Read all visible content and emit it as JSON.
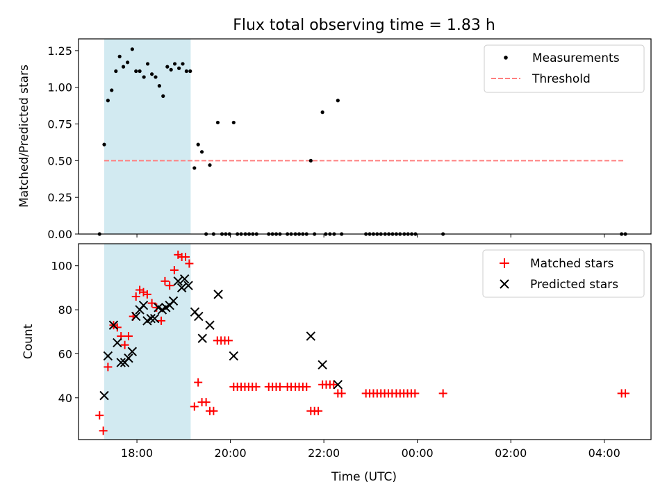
{
  "title": "Flux total observing time = 1.83 h",
  "colors": {
    "shade": "#add8e6",
    "threshold": "#ff7f7f",
    "matched": "#ff0000",
    "predicted": "#000000",
    "measurement": "#000000"
  },
  "chart_data": [
    {
      "type": "scatter",
      "ylabel": "Matched/Predicted stars",
      "xlim": [
        16.75,
        29.0
      ],
      "ylim": [
        0,
        1.33
      ],
      "yticks": [
        0.0,
        0.25,
        0.5,
        0.75,
        1.0,
        1.25
      ],
      "ytick_labels": [
        "0.00",
        "0.25",
        "0.50",
        "0.75",
        "1.00",
        "1.25"
      ],
      "xticks": [
        18,
        20,
        22,
        24,
        26,
        28
      ],
      "shaded_span": [
        17.3,
        19.15
      ],
      "legend": {
        "location": "top-right",
        "entries": [
          "Measurements",
          "Threshold"
        ]
      },
      "threshold": {
        "name": "Threshold",
        "y": 0.5,
        "x_range": [
          17.3,
          28.45
        ]
      },
      "series": [
        {
          "name": "Measurements",
          "marker": "dot",
          "points": [
            [
              17.2,
              0.0
            ],
            [
              17.3,
              0.61
            ],
            [
              17.38,
              0.91
            ],
            [
              17.46,
              0.98
            ],
            [
              17.55,
              1.11
            ],
            [
              17.63,
              1.21
            ],
            [
              17.71,
              1.14
            ],
            [
              17.8,
              1.17
            ],
            [
              17.9,
              1.26
            ],
            [
              17.98,
              1.11
            ],
            [
              18.06,
              1.11
            ],
            [
              18.15,
              1.07
            ],
            [
              18.23,
              1.16
            ],
            [
              18.32,
              1.09
            ],
            [
              18.4,
              1.07
            ],
            [
              18.48,
              1.01
            ],
            [
              18.56,
              0.94
            ],
            [
              18.65,
              1.14
            ],
            [
              18.73,
              1.12
            ],
            [
              18.81,
              1.16
            ],
            [
              18.9,
              1.13
            ],
            [
              18.98,
              1.16
            ],
            [
              19.06,
              1.11
            ],
            [
              19.14,
              1.11
            ],
            [
              19.23,
              0.45
            ],
            [
              19.31,
              0.61
            ],
            [
              19.39,
              0.56
            ],
            [
              19.48,
              0.0
            ],
            [
              19.56,
              0.47
            ],
            [
              19.64,
              0.0
            ],
            [
              19.73,
              0.76
            ],
            [
              19.82,
              0.0
            ],
            [
              19.9,
              0.0
            ],
            [
              19.98,
              0.0
            ],
            [
              20.07,
              0.76
            ],
            [
              20.15,
              0.0
            ],
            [
              20.23,
              0.0
            ],
            [
              20.32,
              0.0
            ],
            [
              20.4,
              0.0
            ],
            [
              20.48,
              0.0
            ],
            [
              20.56,
              0.0
            ],
            [
              20.82,
              0.0
            ],
            [
              20.9,
              0.0
            ],
            [
              20.98,
              0.0
            ],
            [
              21.06,
              0.0
            ],
            [
              21.22,
              0.0
            ],
            [
              21.3,
              0.0
            ],
            [
              21.39,
              0.0
            ],
            [
              21.47,
              0.0
            ],
            [
              21.55,
              0.0
            ],
            [
              21.63,
              0.0
            ],
            [
              21.72,
              0.5
            ],
            [
              21.8,
              0.0
            ],
            [
              21.97,
              0.83
            ],
            [
              22.04,
              0.0
            ],
            [
              22.13,
              0.0
            ],
            [
              22.22,
              0.0
            ],
            [
              22.3,
              0.91
            ],
            [
              22.38,
              0.0
            ],
            [
              22.9,
              0.0
            ],
            [
              22.98,
              0.0
            ],
            [
              23.06,
              0.0
            ],
            [
              23.14,
              0.0
            ],
            [
              23.22,
              0.0
            ],
            [
              23.31,
              0.0
            ],
            [
              23.39,
              0.0
            ],
            [
              23.47,
              0.0
            ],
            [
              23.55,
              0.0
            ],
            [
              23.63,
              0.0
            ],
            [
              23.72,
              0.0
            ],
            [
              23.8,
              0.0
            ],
            [
              23.88,
              0.0
            ],
            [
              23.96,
              0.0
            ],
            [
              24.55,
              0.0
            ],
            [
              28.37,
              0.0
            ],
            [
              28.45,
              0.0
            ]
          ]
        }
      ]
    },
    {
      "type": "scatter",
      "ylabel": "Count",
      "xlabel": "Time (UTC)",
      "xlim": [
        16.75,
        29.0
      ],
      "ylim": [
        21,
        110
      ],
      "yticks": [
        40,
        60,
        80,
        100
      ],
      "ytick_labels": [
        "40",
        "60",
        "80",
        "100"
      ],
      "xticks": [
        18,
        20,
        22,
        24,
        26,
        28
      ],
      "xtick_labels": [
        "18:00",
        "20:00",
        "22:00",
        "00:00",
        "02:00",
        "04:00"
      ],
      "shaded_span": [
        17.3,
        19.15
      ],
      "legend": {
        "location": "top-right",
        "entries": [
          "Matched stars",
          "Predicted stars"
        ]
      },
      "series": [
        {
          "name": "Matched stars",
          "marker": "plus",
          "points": [
            [
              17.2,
              32
            ],
            [
              17.28,
              25
            ],
            [
              17.38,
              54
            ],
            [
              17.5,
              73
            ],
            [
              17.58,
              72
            ],
            [
              17.66,
              68
            ],
            [
              17.74,
              64
            ],
            [
              17.82,
              68
            ],
            [
              17.92,
              77
            ],
            [
              17.98,
              86
            ],
            [
              18.06,
              89
            ],
            [
              18.14,
              88
            ],
            [
              18.22,
              87
            ],
            [
              18.32,
              83
            ],
            [
              18.42,
              81
            ],
            [
              18.52,
              75
            ],
            [
              18.6,
              93
            ],
            [
              18.7,
              91
            ],
            [
              18.8,
              98
            ],
            [
              18.88,
              105
            ],
            [
              18.96,
              104
            ],
            [
              19.04,
              104
            ],
            [
              19.12,
              101
            ],
            [
              19.23,
              36
            ],
            [
              19.31,
              47
            ],
            [
              19.39,
              38
            ],
            [
              19.48,
              38
            ],
            [
              19.56,
              34
            ],
            [
              19.64,
              34
            ],
            [
              19.72,
              66
            ],
            [
              19.8,
              66
            ],
            [
              19.88,
              66
            ],
            [
              19.96,
              66
            ],
            [
              20.07,
              45
            ],
            [
              20.15,
              45
            ],
            [
              20.23,
              45
            ],
            [
              20.31,
              45
            ],
            [
              20.39,
              45
            ],
            [
              20.47,
              45
            ],
            [
              20.55,
              45
            ],
            [
              20.82,
              45
            ],
            [
              20.9,
              45
            ],
            [
              20.98,
              45
            ],
            [
              21.06,
              45
            ],
            [
              21.22,
              45
            ],
            [
              21.3,
              45
            ],
            [
              21.39,
              45
            ],
            [
              21.47,
              45
            ],
            [
              21.55,
              45
            ],
            [
              21.63,
              45
            ],
            [
              21.72,
              34
            ],
            [
              21.8,
              34
            ],
            [
              21.88,
              34
            ],
            [
              21.97,
              46
            ],
            [
              22.05,
              46
            ],
            [
              22.13,
              46
            ],
            [
              22.21,
              46
            ],
            [
              22.3,
              42
            ],
            [
              22.38,
              42
            ],
            [
              22.9,
              42
            ],
            [
              22.98,
              42
            ],
            [
              23.06,
              42
            ],
            [
              23.14,
              42
            ],
            [
              23.22,
              42
            ],
            [
              23.3,
              42
            ],
            [
              23.38,
              42
            ],
            [
              23.46,
              42
            ],
            [
              23.55,
              42
            ],
            [
              23.63,
              42
            ],
            [
              23.71,
              42
            ],
            [
              23.79,
              42
            ],
            [
              23.87,
              42
            ],
            [
              23.95,
              42
            ],
            [
              24.55,
              42
            ],
            [
              28.37,
              42
            ],
            [
              28.45,
              42
            ]
          ]
        },
        {
          "name": "Predicted stars",
          "marker": "x",
          "points": [
            [
              17.3,
              41
            ],
            [
              17.38,
              59
            ],
            [
              17.5,
              73
            ],
            [
              17.58,
              65
            ],
            [
              17.66,
              56
            ],
            [
              17.74,
              56
            ],
            [
              17.82,
              58
            ],
            [
              17.9,
              61
            ],
            [
              17.98,
              77
            ],
            [
              18.06,
              80
            ],
            [
              18.14,
              82
            ],
            [
              18.22,
              75
            ],
            [
              18.3,
              76
            ],
            [
              18.38,
              76
            ],
            [
              18.46,
              81
            ],
            [
              18.54,
              80
            ],
            [
              18.62,
              81
            ],
            [
              18.7,
              82
            ],
            [
              18.78,
              84
            ],
            [
              18.88,
              93
            ],
            [
              18.96,
              90
            ],
            [
              19.02,
              94
            ],
            [
              19.1,
              91
            ],
            [
              19.24,
              79
            ],
            [
              19.32,
              77
            ],
            [
              19.4,
              67
            ],
            [
              19.56,
              73
            ],
            [
              19.74,
              87
            ],
            [
              20.07,
              59
            ],
            [
              21.72,
              68
            ],
            [
              21.97,
              55
            ],
            [
              22.3,
              46
            ]
          ]
        }
      ]
    }
  ]
}
